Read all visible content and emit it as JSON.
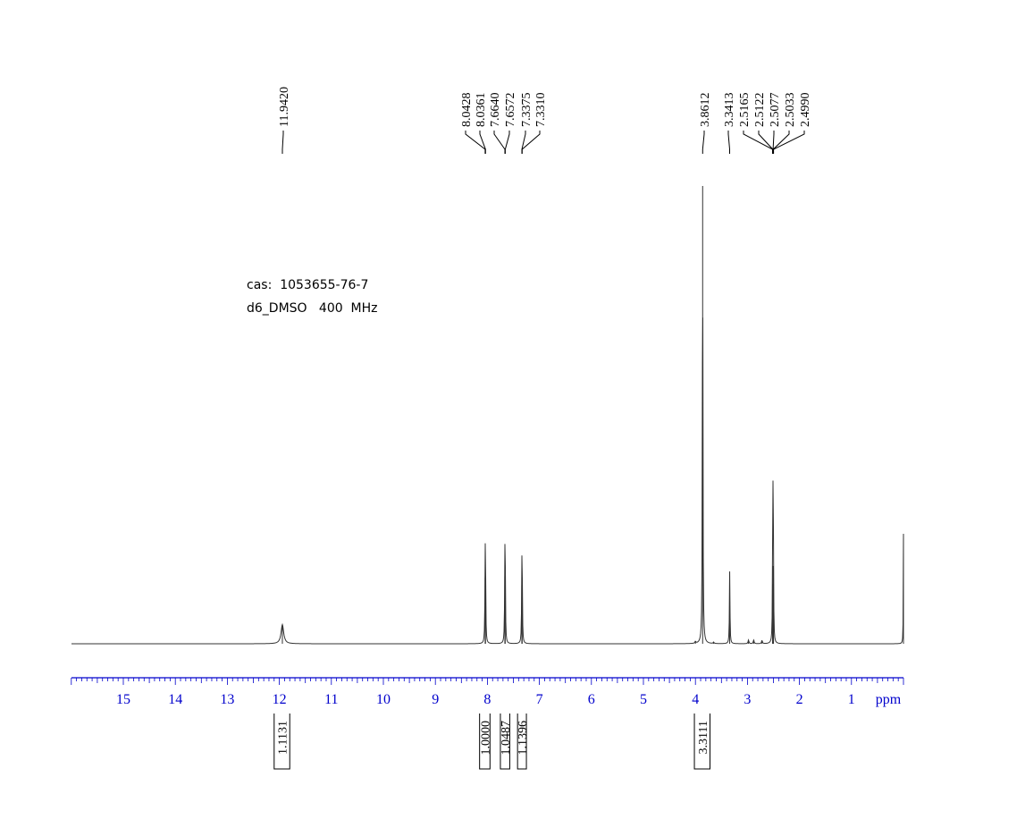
{
  "chart_data": {
    "type": "line",
    "title": "",
    "annotation_lines": [
      "cas:  1053655-76-7",
      "d6_DMSO   400  MHz"
    ],
    "xlabel": "ppm",
    "ylabel": "",
    "x_reversed": true,
    "xlim": [
      16,
      0
    ],
    "xticks": [
      15,
      14,
      13,
      12,
      11,
      10,
      9,
      8,
      7,
      6,
      5,
      4,
      3,
      2,
      1
    ],
    "grid": false,
    "peaks": [
      {
        "ppm": 11.942,
        "height": 0.042,
        "width": 0.03
      },
      {
        "ppm": 8.0428,
        "height": 0.145,
        "width": 0.006
      },
      {
        "ppm": 8.0361,
        "height": 0.145,
        "width": 0.006
      },
      {
        "ppm": 7.664,
        "height": 0.147,
        "width": 0.006
      },
      {
        "ppm": 7.6572,
        "height": 0.147,
        "width": 0.006
      },
      {
        "ppm": 7.3375,
        "height": 0.128,
        "width": 0.006
      },
      {
        "ppm": 7.331,
        "height": 0.128,
        "width": 0.006
      },
      {
        "ppm": 3.8612,
        "height": 1.0,
        "width": 0.006
      },
      {
        "ppm": 3.3413,
        "height": 0.158,
        "width": 0.006
      },
      {
        "ppm": 2.5165,
        "height": 0.09,
        "width": 0.005
      },
      {
        "ppm": 2.5122,
        "height": 0.13,
        "width": 0.005
      },
      {
        "ppm": 2.5077,
        "height": 0.17,
        "width": 0.005
      },
      {
        "ppm": 2.5033,
        "height": 0.13,
        "width": 0.005
      },
      {
        "ppm": 2.499,
        "height": 0.09,
        "width": 0.005
      },
      {
        "ppm": 4.0,
        "height": 0.004,
        "width": 0.01
      },
      {
        "ppm": 3.65,
        "height": 0.003,
        "width": 0.01
      },
      {
        "ppm": 2.98,
        "height": 0.008,
        "width": 0.01
      },
      {
        "ppm": 2.88,
        "height": 0.008,
        "width": 0.01
      },
      {
        "ppm": 2.72,
        "height": 0.007,
        "width": 0.01
      },
      {
        "ppm": 0.0,
        "height": 0.24,
        "width": 0.004
      }
    ],
    "peak_labels": [
      {
        "label": "11.9420",
        "ppm": 11.942
      },
      {
        "label": "8.0428",
        "ppm": 8.0428
      },
      {
        "label": "8.0361",
        "ppm": 8.0361
      },
      {
        "label": "7.6640",
        "ppm": 7.664
      },
      {
        "label": "7.6572",
        "ppm": 7.6572
      },
      {
        "label": "7.3375",
        "ppm": 7.3375
      },
      {
        "label": "7.3310",
        "ppm": 7.331
      },
      {
        "label": "3.8612",
        "ppm": 3.8612
      },
      {
        "label": "3.3413",
        "ppm": 3.3413
      },
      {
        "label": "2.5165",
        "ppm": 2.5165
      },
      {
        "label": "2.5122",
        "ppm": 2.5122
      },
      {
        "label": "2.5077",
        "ppm": 2.5077
      },
      {
        "label": "2.5033",
        "ppm": 2.5033
      },
      {
        "label": "2.4990",
        "ppm": 2.499
      }
    ],
    "integrals": [
      {
        "label": "1.1131",
        "from": 12.1,
        "to": 11.8
      },
      {
        "label": "1.0000",
        "from": 8.15,
        "to": 7.95
      },
      {
        "label": "1.0487",
        "from": 7.75,
        "to": 7.57
      },
      {
        "label": "1.1396",
        "from": 7.42,
        "to": 7.25
      },
      {
        "label": "3.3111",
        "from": 4.02,
        "to": 3.72
      }
    ]
  }
}
